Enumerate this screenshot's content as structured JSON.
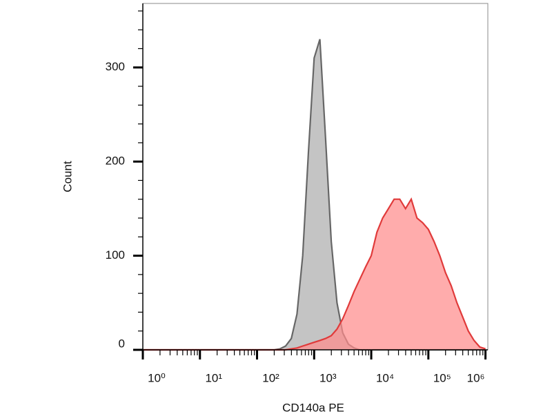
{
  "chart_data": {
    "type": "area",
    "xlabel": "CD140a PE",
    "ylabel": "Count",
    "xscale": "log",
    "x": [
      1,
      10,
      100,
      158,
      200,
      251,
      316,
      398,
      501,
      631,
      794,
      1000,
      1259,
      1585,
      1995,
      2512,
      3162,
      3981,
      5012,
      6310,
      7943,
      10000,
      12589,
      15849,
      19953,
      25119,
      31623,
      39811,
      50119,
      63096,
      79433,
      100000,
      125893,
      158489,
      199526,
      251189,
      316228,
      398107,
      501187,
      630957,
      794328,
      1000000
    ],
    "series": [
      {
        "color": "#666666",
        "fill": "#c4c4c4",
        "values": [
          0,
          0,
          0,
          0,
          0,
          1,
          4,
          12,
          38,
          100,
          210,
          310,
          330,
          225,
          115,
          50,
          18,
          6,
          2,
          0,
          0,
          0,
          0,
          0,
          0,
          0,
          0,
          0,
          0,
          0,
          0,
          0,
          0,
          0,
          0,
          0,
          0,
          0,
          0,
          0,
          0,
          0
        ]
      },
      {
        "color": "#e03a3a",
        "fill": "#ff8c8c",
        "values": [
          0,
          0,
          0,
          0,
          0,
          0,
          0,
          1,
          2,
          4,
          6,
          8,
          10,
          12,
          15,
          22,
          33,
          47,
          62,
          75,
          88,
          100,
          125,
          140,
          150,
          160,
          160,
          150,
          160,
          140,
          135,
          128,
          115,
          100,
          82,
          68,
          50,
          35,
          20,
          10,
          3,
          1
        ]
      }
    ],
    "xlim": [
      1,
      1100000
    ],
    "xticks": [
      {
        "value": 1,
        "label": "10⁰"
      },
      {
        "value": 10,
        "label": "10¹"
      },
      {
        "value": 100,
        "label": "10²"
      },
      {
        "value": 1000,
        "label": "10³"
      },
      {
        "value": 10000,
        "label": "10⁴"
      },
      {
        "value": 100000,
        "label": "10⁵"
      },
      {
        "value": 1000000,
        "label": "10⁶"
      }
    ],
    "xminorticks": [
      2,
      3,
      4,
      5,
      6,
      7,
      8,
      9,
      20,
      30,
      40,
      50,
      60,
      70,
      80,
      90,
      200,
      300,
      400,
      500,
      600,
      700,
      800,
      900,
      2000,
      3000,
      4000,
      5000,
      6000,
      7000,
      8000,
      9000,
      20000,
      30000,
      40000,
      50000,
      60000,
      70000,
      80000,
      90000,
      200000,
      300000,
      400000,
      500000,
      600000,
      700000,
      800000,
      900000
    ],
    "ylim": [
      0,
      368
    ],
    "yticks": [
      0,
      100,
      200,
      300
    ],
    "yminorticks": [
      20,
      40,
      60,
      80,
      120,
      140,
      160,
      180,
      220,
      240,
      260,
      280,
      320,
      340,
      360
    ]
  }
}
